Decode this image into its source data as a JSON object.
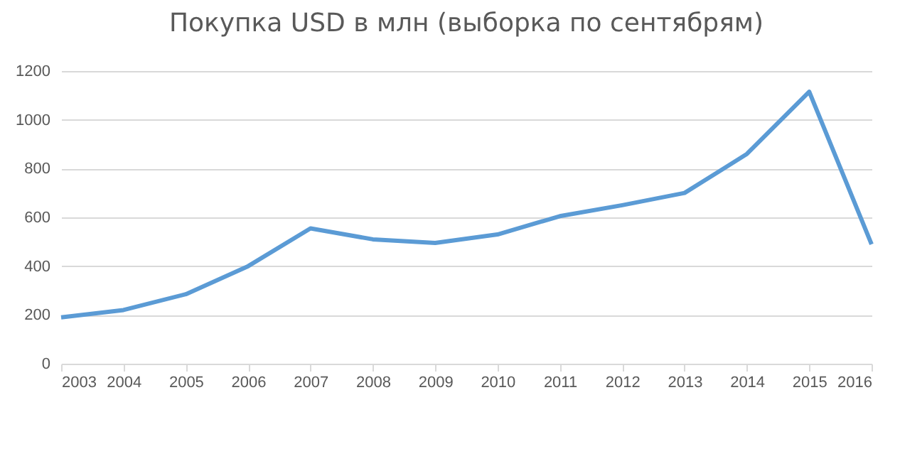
{
  "chart_data": {
    "type": "line",
    "title": "Покупка USD в млн (выборка по сентябрям)",
    "categories": [
      "2003",
      "2004",
      "2005",
      "2006",
      "2007",
      "2008",
      "2009",
      "2010",
      "2011",
      "2012",
      "2013",
      "2014",
      "2015",
      "2016"
    ],
    "series": [
      {
        "color": "#5b9bd5",
        "values": [
          190,
          220,
          285,
          400,
          555,
          510,
          495,
          530,
          605,
          650,
          700,
          860,
          1115,
          490
        ]
      }
    ],
    "ylim": [
      0,
      1200
    ],
    "yticks": [
      0,
      200,
      400,
      600,
      800,
      1000,
      1200
    ],
    "grid": "y",
    "legend": false
  }
}
